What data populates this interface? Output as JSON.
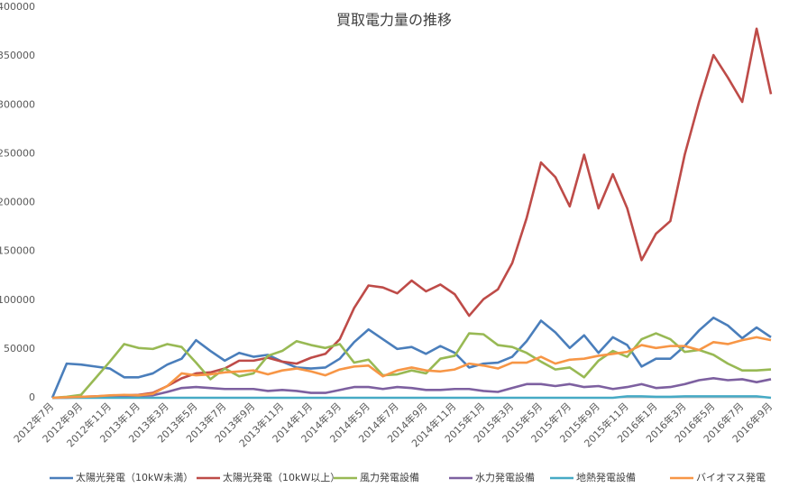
{
  "chart_data": {
    "type": "line",
    "title": "買取電力量の推移",
    "categories": [
      "2012年7月",
      null,
      "2012年9月",
      null,
      "2012年11月",
      null,
      "2013年1月",
      null,
      "2013年3月",
      null,
      "2013年5月",
      null,
      "2013年7月",
      null,
      "2013年9月",
      null,
      "2013年11月",
      null,
      "2014年1月",
      null,
      "2014年3月",
      null,
      "2014年5月",
      null,
      "2014年7月",
      null,
      "2014年9月",
      null,
      "2014年11月",
      null,
      "2015年1月",
      null,
      "2015年3月",
      null,
      "2015年5月",
      null,
      "2015年7月",
      null,
      "2015年9月",
      null,
      "2015年11月",
      null,
      "2016年1月",
      null,
      "2016年3月",
      null,
      "2016年5月",
      null,
      "2016年7月",
      null,
      "2016年9月"
    ],
    "series": [
      {
        "name": "太陽光発電（10kW未満）",
        "color": "#4a7ebb",
        "values": [
          0,
          35000,
          34000,
          32000,
          30000,
          21000,
          21000,
          25000,
          34000,
          40000,
          59000,
          48000,
          38000,
          46000,
          42000,
          44000,
          37000,
          31000,
          30000,
          31000,
          40000,
          57000,
          70000,
          60000,
          50000,
          52000,
          45000,
          53000,
          46000,
          31000,
          35000,
          36000,
          42000,
          58000,
          79000,
          67000,
          51000,
          64000,
          46000,
          62000,
          54000,
          32000,
          40000,
          40000,
          53000,
          69000,
          82000,
          74000,
          61000,
          72000,
          62000
        ]
      },
      {
        "name": "太陽光発電（10kW以上）",
        "color": "#be4b48",
        "values": [
          0,
          500,
          1000,
          1500,
          2000,
          2500,
          3000,
          5000,
          12000,
          20000,
          25000,
          26000,
          30000,
          38000,
          38000,
          41000,
          37000,
          35000,
          41000,
          45000,
          60000,
          92000,
          115000,
          113000,
          107000,
          120000,
          109000,
          116000,
          106000,
          84000,
          101000,
          111000,
          138000,
          184000,
          241000,
          226000,
          196000,
          249000,
          194000,
          229000,
          194000,
          141000,
          168000,
          181000,
          249000,
          303000,
          351000,
          328000,
          303000,
          378000,
          311000
        ]
      },
      {
        "name": "風力発電設備",
        "color": "#98b954",
        "values": [
          0,
          1000,
          3000,
          20000,
          37000,
          55000,
          51000,
          50000,
          55000,
          52000,
          36000,
          19000,
          30000,
          22000,
          25000,
          43000,
          48000,
          58000,
          54000,
          51000,
          55000,
          36000,
          39000,
          23000,
          24000,
          28000,
          25000,
          40000,
          43000,
          66000,
          65000,
          54000,
          52000,
          46000,
          37000,
          29000,
          31000,
          21000,
          38000,
          48000,
          42000,
          60000,
          66000,
          60000,
          47000,
          49000,
          44000,
          35000,
          28000,
          28000,
          29000
        ]
      },
      {
        "name": "水力発電設備",
        "color": "#7d60a0",
        "values": [
          0,
          0,
          500,
          1000,
          1500,
          2000,
          2000,
          2500,
          6000,
          10000,
          11000,
          10000,
          9000,
          9000,
          9000,
          7000,
          8000,
          7000,
          5000,
          5000,
          8000,
          11000,
          11000,
          9000,
          11000,
          10000,
          8000,
          8000,
          9000,
          9000,
          7000,
          6000,
          10000,
          14000,
          14000,
          12000,
          14000,
          11000,
          12000,
          9000,
          11000,
          14000,
          10000,
          11000,
          14000,
          18000,
          20000,
          18000,
          19000,
          16000,
          19000
        ]
      },
      {
        "name": "地熱発電設備",
        "color": "#46aac5",
        "values": [
          0,
          0,
          0,
          0,
          0,
          0,
          0,
          0,
          0,
          0,
          0,
          0,
          0,
          0,
          0,
          0,
          0,
          0,
          0,
          0,
          0,
          0,
          0,
          0,
          0,
          0,
          0,
          0,
          0,
          0,
          0,
          0,
          0,
          0,
          0,
          0,
          0,
          0,
          0,
          0,
          1500,
          1500,
          1000,
          1000,
          1500,
          1500,
          1500,
          1500,
          1500,
          1500,
          0
        ]
      },
      {
        "name": "バイオマス発電",
        "color": "#f79646",
        "values": [
          0,
          500,
          1000,
          1500,
          2500,
          3000,
          2500,
          4000,
          12000,
          25000,
          23000,
          24000,
          26000,
          27000,
          28000,
          24000,
          28000,
          30000,
          27000,
          23000,
          29000,
          32000,
          33000,
          22000,
          28000,
          31000,
          28000,
          27000,
          29000,
          35000,
          33000,
          30000,
          36000,
          36000,
          42000,
          35000,
          39000,
          40000,
          43000,
          45000,
          47000,
          54000,
          51000,
          53000,
          53000,
          49000,
          57000,
          55000,
          59000,
          62000,
          59000
        ]
      }
    ],
    "ylim": [
      0,
      400000
    ],
    "yticks": [
      0,
      50000,
      100000,
      150000,
      200000,
      250000,
      300000,
      350000,
      400000
    ],
    "grid": false,
    "legend": "bottom"
  }
}
